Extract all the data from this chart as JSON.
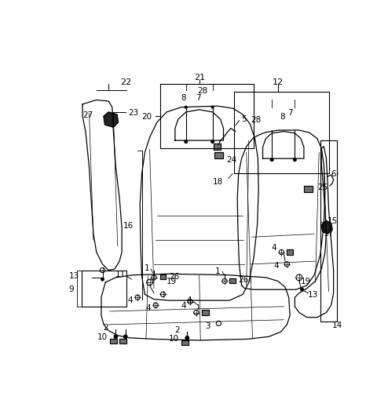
{
  "bg": "#ffffff",
  "lc": "#000000",
  "fw": 4.8,
  "fh": 5.06,
  "dpi": 100,
  "lfs": 7.5,
  "label_color": "#000000"
}
